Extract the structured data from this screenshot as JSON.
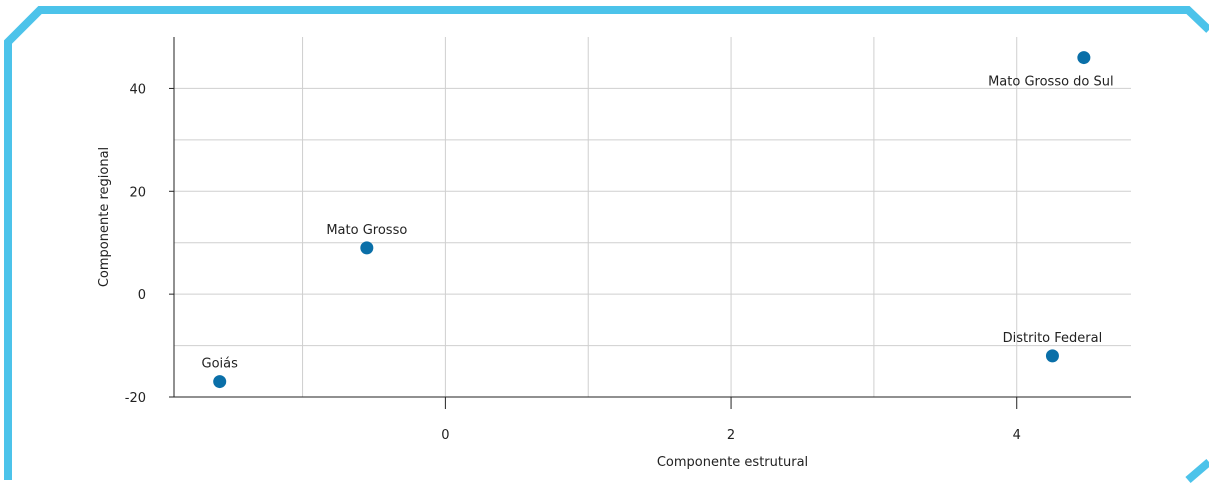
{
  "frame": {
    "color": "#4cc3ea"
  },
  "chart_data": {
    "type": "scatter",
    "xlabel": "Componente estrutural",
    "ylabel": "Componente regional",
    "xlim": [
      -1.9,
      4.8
    ],
    "ylim": [
      -20,
      50
    ],
    "x_ticks": [
      0,
      2,
      4
    ],
    "y_ticks": [
      -20,
      0,
      20,
      40
    ],
    "x_grid": [
      -1,
      0,
      1,
      2,
      3,
      4
    ],
    "y_grid": [
      -10,
      0,
      10,
      20,
      30,
      40
    ],
    "grid": true,
    "point_color": "#0a6fa8",
    "points": [
      {
        "label": "Goiás",
        "x": -1.58,
        "y": -17
      },
      {
        "label": "Mato Grosso",
        "x": -0.55,
        "y": 9
      },
      {
        "label": "Mato Grosso do Sul",
        "x": 4.47,
        "y": 46
      },
      {
        "label": "Distrito Federal",
        "x": 4.25,
        "y": -12
      }
    ]
  }
}
